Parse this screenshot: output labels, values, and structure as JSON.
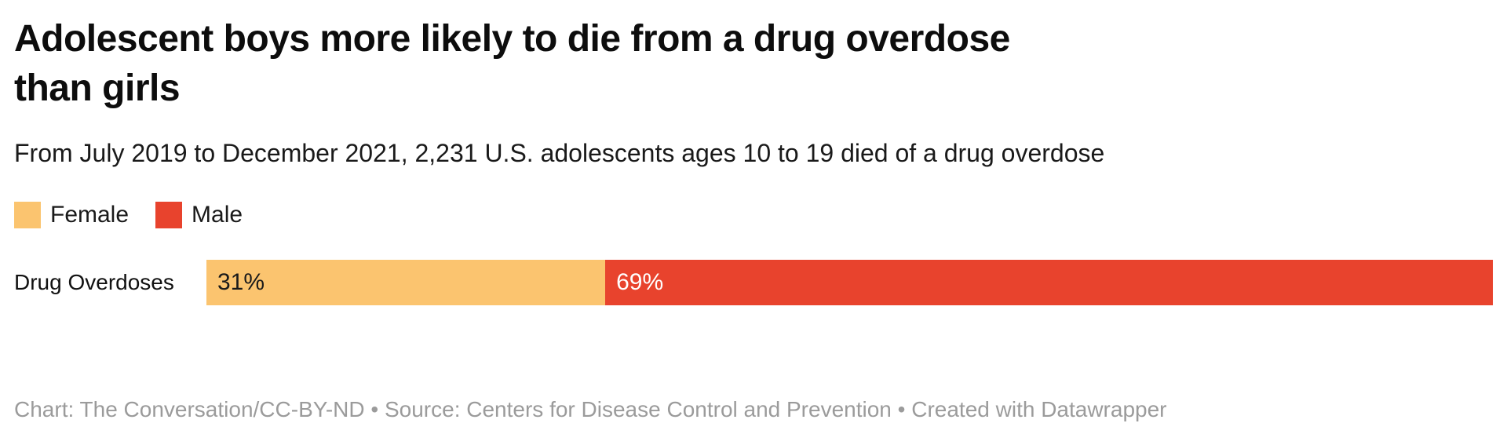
{
  "title": {
    "line1": "Adolescent boys more likely to die from a drug overdose",
    "line2": "than girls"
  },
  "subtitle": "From July 2019 to December 2021, 2,231 U.S. adolescents ages 10 to 19 died of a drug overdose",
  "legend": [
    {
      "label": "Female",
      "color": "#FBC46F"
    },
    {
      "label": "Male",
      "color": "#E8432D"
    }
  ],
  "chart_data": {
    "type": "bar",
    "stacked": true,
    "orientation": "horizontal",
    "title": "Adolescent boys more likely to die from a drug overdose than girls",
    "subtitle": "From July 2019 to December 2021, 2,231 U.S. adolescents ages 10 to 19 died of a drug overdose",
    "categories": [
      "Drug Overdoses"
    ],
    "series": [
      {
        "name": "Female",
        "values": [
          31
        ],
        "color": "#FBC46F",
        "label": "31%",
        "label_color": "#1a1a1a"
      },
      {
        "name": "Male",
        "values": [
          69
        ],
        "color": "#E8432D",
        "label": "69%",
        "label_color": "#ffffff"
      }
    ],
    "xlim": [
      0,
      100
    ],
    "unit": "%",
    "legend_position": "top",
    "grid": false
  },
  "row": {
    "label": "Drug Overdoses"
  },
  "footer": "Chart: The Conversation/CC-BY-ND • Source: Centers for Disease Control and Prevention • Created with Datawrapper"
}
